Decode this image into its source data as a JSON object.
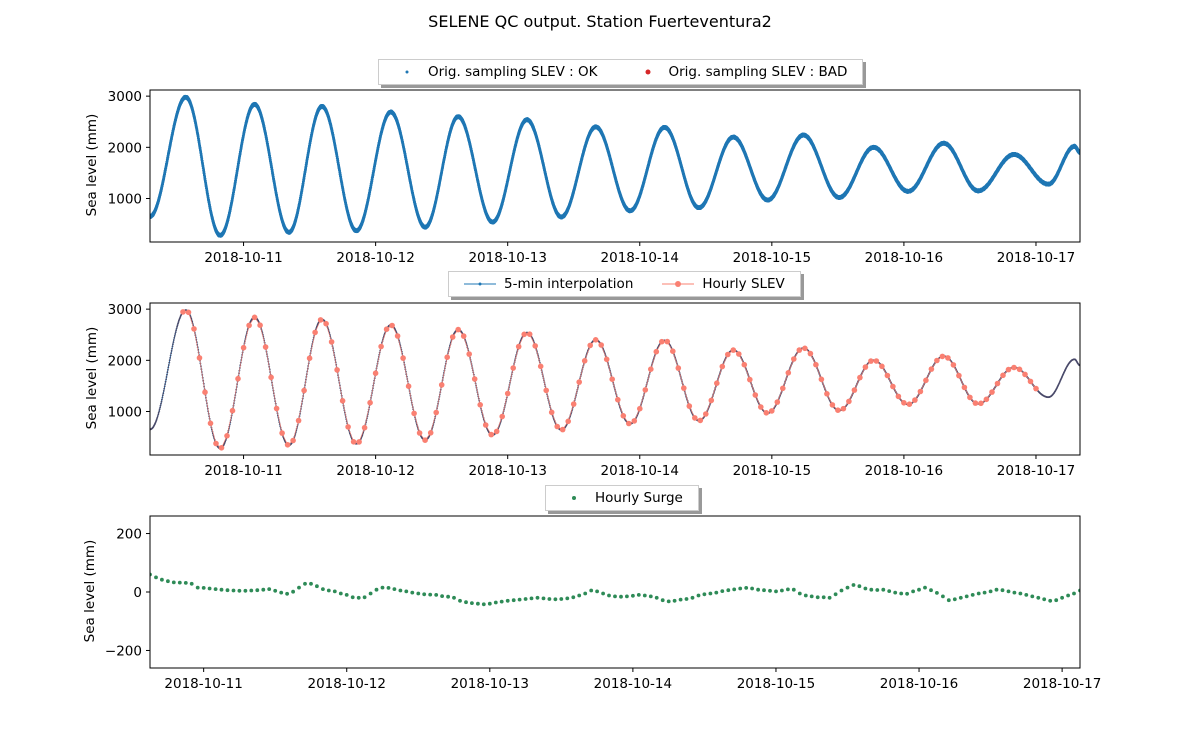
{
  "figure": {
    "title": "SELENE QC output. Station Fuerteventura2"
  },
  "colors": {
    "ok": "#1f77b4",
    "bad": "#d62728",
    "interp": "#1f77b4",
    "hourly": "#fa8072",
    "surge": "#2e8b57"
  },
  "chart_data": [
    {
      "type": "scatter",
      "ylabel": "Sea level (mm)",
      "legend": {
        "placement": "top-center",
        "entries": [
          "Orig. sampling SLEV : OK",
          "Orig. sampling SLEV : BAD"
        ]
      },
      "xlim": [
        "2018-10-10 07:00",
        "2018-10-17 08:00"
      ],
      "ylim": [
        150,
        3120
      ],
      "x_ticks": [
        "2018-10-11",
        "2018-10-12",
        "2018-10-13",
        "2018-10-14",
        "2018-10-15",
        "2018-10-16",
        "2018-10-17"
      ],
      "y_ticks": [
        1000,
        2000,
        3000
      ],
      "series": [
        {
          "name": "Orig. sampling SLEV : OK",
          "values_source": "tide_extrema",
          "start": "2018-10-10 07:00",
          "end": "2018-10-17 08:00"
        },
        {
          "name": "Orig. sampling SLEV : BAD",
          "values": []
        }
      ],
      "tide_extrema": [
        [
          "2018-10-10 07:00",
          650
        ],
        [
          "2018-10-10 13:30",
          2980
        ],
        [
          "2018-10-10 19:45",
          280
        ],
        [
          "2018-10-11 02:00",
          2840
        ],
        [
          "2018-10-11 08:15",
          340
        ],
        [
          "2018-10-11 14:15",
          2800
        ],
        [
          "2018-10-11 20:30",
          370
        ],
        [
          "2018-10-12 02:45",
          2690
        ],
        [
          "2018-10-12 09:00",
          440
        ],
        [
          "2018-10-12 15:00",
          2600
        ],
        [
          "2018-10-12 21:15",
          540
        ],
        [
          "2018-10-13 03:30",
          2540
        ],
        [
          "2018-10-13 09:45",
          640
        ],
        [
          "2018-10-13 16:00",
          2400
        ],
        [
          "2018-10-13 22:15",
          760
        ],
        [
          "2018-10-14 04:30",
          2390
        ],
        [
          "2018-10-14 10:45",
          820
        ],
        [
          "2018-10-14 17:00",
          2200
        ],
        [
          "2018-10-14 23:15",
          970
        ],
        [
          "2018-10-15 05:45",
          2240
        ],
        [
          "2018-10-15 12:15",
          1020
        ],
        [
          "2018-10-15 18:30",
          2000
        ],
        [
          "2018-10-16 00:45",
          1140
        ],
        [
          "2018-10-16 07:15",
          2080
        ],
        [
          "2018-10-16 13:30",
          1150
        ],
        [
          "2018-10-16 20:00",
          1860
        ],
        [
          "2018-10-17 02:15",
          1280
        ],
        [
          "2018-10-17 07:00",
          2020
        ],
        [
          "2018-10-17 08:00",
          1900
        ]
      ]
    },
    {
      "type": "line",
      "ylabel": "Sea level (mm)",
      "legend": {
        "placement": "top-center",
        "entries": [
          "5-min interpolation",
          "Hourly SLEV"
        ]
      },
      "xlim": [
        "2018-10-10 07:00",
        "2018-10-17 08:00"
      ],
      "ylim": [
        150,
        3120
      ],
      "x_ticks": [
        "2018-10-11",
        "2018-10-12",
        "2018-10-13",
        "2018-10-14",
        "2018-10-15",
        "2018-10-16",
        "2018-10-17"
      ],
      "y_ticks": [
        1000,
        2000,
        3000
      ],
      "series": [
        {
          "name": "5-min interpolation",
          "values_source": "tide_extrema",
          "start": "2018-10-10 07:00",
          "end": "2018-10-17 08:00"
        },
        {
          "name": "Hourly SLEV",
          "values_source": "tide_extrema",
          "start": "2018-10-10 13:00",
          "end": "2018-10-17 00:00"
        }
      ]
    },
    {
      "type": "scatter",
      "ylabel": "Sea level (mm)",
      "legend": {
        "placement": "top-center",
        "entries": [
          "Hourly Surge"
        ]
      },
      "xlim": [
        "2018-10-10 15:00",
        "2018-10-17 03:00"
      ],
      "ylim": [
        -260,
        260
      ],
      "x_ticks": [
        "2018-10-11",
        "2018-10-12",
        "2018-10-13",
        "2018-10-14",
        "2018-10-15",
        "2018-10-16",
        "2018-10-17"
      ],
      "y_ticks": [
        -200,
        0,
        200
      ],
      "series": [
        {
          "name": "Hourly Surge",
          "start": "2018-10-10 15:00",
          "step_hours": 1,
          "values": [
            60,
            50,
            42,
            37,
            33,
            32,
            31,
            28,
            15,
            14,
            12,
            10,
            8,
            6,
            5,
            4,
            4,
            5,
            6,
            8,
            10,
            4,
            -2,
            -6,
            1,
            15,
            28,
            28,
            20,
            10,
            5,
            2,
            -5,
            -10,
            -18,
            -20,
            -18,
            -5,
            8,
            15,
            14,
            10,
            5,
            2,
            -2,
            -5,
            -8,
            -9,
            -10,
            -14,
            -16,
            -20,
            -30,
            -35,
            -38,
            -40,
            -42,
            -40,
            -36,
            -33,
            -30,
            -28,
            -26,
            -24,
            -22,
            -20,
            -22,
            -24,
            -25,
            -24,
            -22,
            -18,
            -12,
            -5,
            5,
            2,
            -5,
            -12,
            -15,
            -16,
            -15,
            -13,
            -10,
            -12,
            -15,
            -20,
            -28,
            -32,
            -30,
            -26,
            -24,
            -20,
            -12,
            -8,
            -5,
            -2,
            3,
            6,
            9,
            12,
            14,
            12,
            8,
            6,
            4,
            2,
            5,
            9,
            8,
            -5,
            -12,
            -15,
            -18,
            -18,
            -20,
            -8,
            5,
            15,
            24,
            20,
            12,
            8,
            7,
            8,
            3,
            -2,
            -5,
            -6,
            2,
            8,
            15,
            6,
            -3,
            -15,
            -28,
            -25,
            -20,
            -15,
            -10,
            -5,
            -2,
            2,
            8,
            6,
            2,
            -2,
            -5,
            -10,
            -15,
            -20,
            -25,
            -30,
            -28,
            -20,
            -12,
            -5,
            5,
            14,
            16,
            15,
            14,
            12,
            10,
            9,
            10,
            12,
            20,
            22,
            8,
            5,
            6,
            10,
            12,
            14,
            16,
            15,
            14,
            12,
            10,
            6,
            -10,
            -15,
            -18,
            -20,
            -22,
            -25,
            -28,
            -26,
            -22,
            -15,
            -8,
            -5,
            -2,
            0,
            2,
            4,
            5,
            6,
            5,
            4,
            2,
            0,
            -2,
            -8,
            -15,
            -20,
            -18,
            -15,
            -14,
            -12,
            -12,
            -14,
            -18,
            -22,
            -30,
            -35,
            -28,
            -25,
            -22,
            -20,
            -18,
            -14,
            -10
          ]
        }
      ]
    }
  ]
}
